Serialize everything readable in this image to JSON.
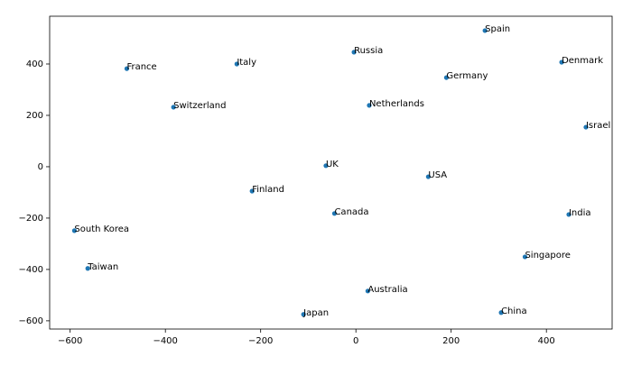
{
  "chart_data": {
    "type": "scatter",
    "labels": [
      "Spain",
      "Russia",
      "Denmark",
      "France",
      "Italy",
      "Germany",
      "Switzerland",
      "Netherlands",
      "Israel",
      "UK",
      "USA",
      "Finland",
      "Canada",
      "India",
      "South Korea",
      "Taiwan",
      "Singapore",
      "Australia",
      "Japan",
      "China"
    ],
    "x": [
      271,
      -4,
      432,
      -481,
      -250,
      190,
      -383,
      28,
      483,
      -63,
      152,
      -218,
      -45,
      447,
      -591,
      -563,
      355,
      25,
      -110,
      305
    ],
    "y": [
      530,
      446,
      407,
      382,
      400,
      347,
      232,
      239,
      154,
      4,
      -39,
      -95,
      -182,
      -186,
      -249,
      -396,
      -351,
      -484,
      -575,
      -568
    ],
    "color": "#1f77b4",
    "xlim": [
      -643,
      538
    ],
    "ylim": [
      -632,
      586
    ],
    "xticks": [
      {
        "value": -600,
        "label": "−600"
      },
      {
        "value": -400,
        "label": "−400"
      },
      {
        "value": -200,
        "label": "−200"
      },
      0,
      200,
      400
    ],
    "yticks": [
      {
        "value": -600,
        "label": "−600"
      },
      {
        "value": -400,
        "label": "−400"
      },
      {
        "value": -200,
        "label": "−200"
      },
      0,
      200,
      400
    ]
  }
}
